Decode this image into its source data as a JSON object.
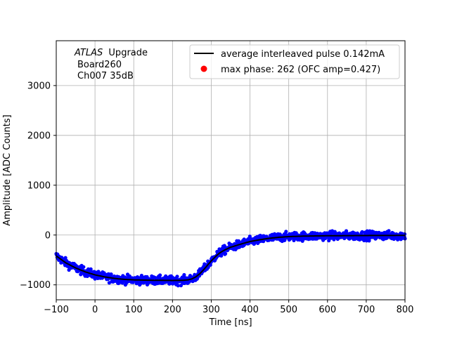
{
  "chart_data": {
    "type": "scatter",
    "xlabel": "Time [ns]",
    "ylabel": "Amplitude [ADC Counts]",
    "xlim": [
      -100,
      800
    ],
    "ylim": [
      -1300,
      3900
    ],
    "xticks": [
      -100,
      0,
      100,
      200,
      300,
      400,
      500,
      600,
      700,
      800
    ],
    "yticks": [
      -1000,
      0,
      1000,
      2000,
      3000
    ],
    "grid": true,
    "legend_position": "top-right",
    "annotation": {
      "italic": "ATLAS",
      "rest": "Upgrade",
      "line2": "Board260",
      "line3": "Ch007 35dB"
    },
    "series": [
      {
        "name": "average interleaved pulse 0.142mA",
        "kind": "line",
        "color": "#000000",
        "x": [
          -100,
          -75,
          -50,
          -25,
          0,
          25,
          50,
          75,
          100,
          125,
          150,
          175,
          200,
          225,
          240,
          250,
          260,
          270,
          280,
          290,
          300,
          310,
          320,
          330,
          340,
          350,
          375,
          400,
          425,
          450,
          475,
          500,
          525,
          550,
          600,
          650,
          700,
          750,
          800
        ],
        "y": [
          -420,
          -560,
          -660,
          -740,
          -800,
          -840,
          -870,
          -890,
          -900,
          -905,
          -908,
          -910,
          -912,
          -910,
          -900,
          -880,
          -840,
          -780,
          -700,
          -610,
          -520,
          -440,
          -370,
          -320,
          -280,
          -245,
          -185,
          -130,
          -95,
          -65,
          -45,
          -32,
          -25,
          -20,
          -15,
          -12,
          -10,
          -9,
          -8
        ]
      },
      {
        "name": "max phase: 262 (OFC amp=0.427)",
        "kind": "marker",
        "color": "#ff0000",
        "x": [],
        "y": []
      },
      {
        "name": "",
        "kind": "scatter-band",
        "color": "#0000ff",
        "noise": 60,
        "note": "dense blue points following the average pulse"
      }
    ]
  }
}
